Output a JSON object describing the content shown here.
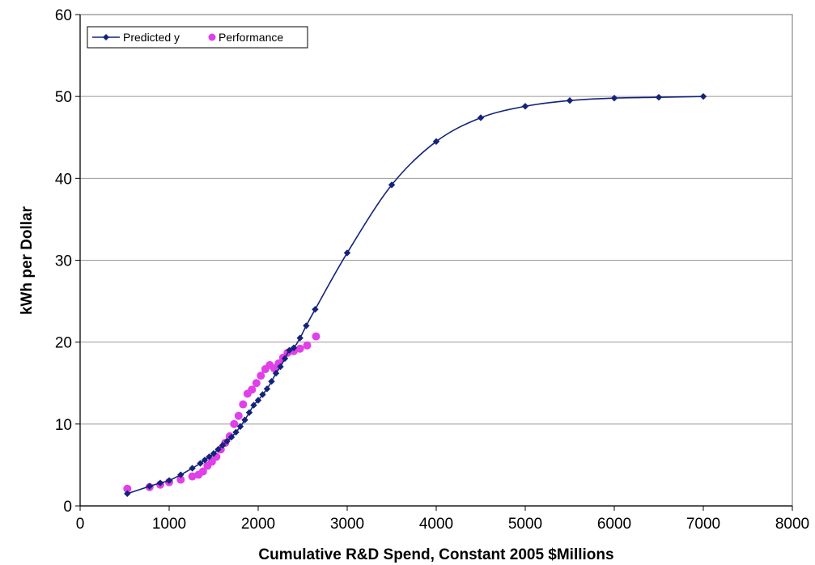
{
  "chart_data": {
    "type": "scatter",
    "xlabel": "Cumulative R&D Spend, Constant 2005 $Millions",
    "ylabel": "kWh per Dollar",
    "xlim": [
      0,
      8000
    ],
    "ylim": [
      0,
      60
    ],
    "xticks": [
      "0",
      "1000",
      "2000",
      "3000",
      "4000",
      "5000",
      "6000",
      "7000",
      "8000"
    ],
    "yticks": [
      "0",
      "10",
      "20",
      "30",
      "40",
      "50",
      "60"
    ],
    "grid": "horizontal",
    "legend_position": "top-left",
    "series": [
      {
        "name": "Predicted y",
        "kind": "line+markers",
        "color": "#14237a",
        "x": [
          530,
          780,
          900,
          1000,
          1130,
          1260,
          1350,
          1400,
          1450,
          1500,
          1550,
          1600,
          1650,
          1700,
          1750,
          1800,
          1850,
          1900,
          1950,
          2000,
          2050,
          2100,
          2150,
          2200,
          2250,
          2300,
          2350,
          2400,
          2470,
          2540,
          2640,
          3000,
          3500,
          4000,
          4500,
          5000,
          5500,
          6000,
          6500,
          7000
        ],
        "y": [
          1.5,
          2.4,
          2.8,
          3.1,
          3.8,
          4.6,
          5.2,
          5.6,
          6.0,
          6.4,
          6.9,
          7.4,
          7.9,
          8.4,
          9.0,
          9.7,
          10.5,
          11.4,
          12.3,
          12.9,
          13.6,
          14.3,
          15.2,
          16.2,
          17.0,
          18.0,
          19.0,
          19.3,
          20.5,
          22.0,
          24.0,
          30.9,
          39.2,
          44.5,
          47.4,
          48.8,
          49.5,
          49.8,
          49.9,
          50.0
        ]
      },
      {
        "name": "Performance",
        "kind": "markers",
        "color": "#e040e8",
        "x": [
          530,
          780,
          900,
          1000,
          1130,
          1260,
          1330,
          1380,
          1430,
          1480,
          1530,
          1580,
          1630,
          1680,
          1730,
          1780,
          1830,
          1880,
          1930,
          1980,
          2030,
          2080,
          2130,
          2180,
          2230,
          2280,
          2330,
          2400,
          2470,
          2550,
          2650
        ],
        "y": [
          2.1,
          2.3,
          2.6,
          2.9,
          3.2,
          3.6,
          3.8,
          4.2,
          4.9,
          5.4,
          6.0,
          6.9,
          7.7,
          8.5,
          10.0,
          11.0,
          12.4,
          13.7,
          14.2,
          15.0,
          15.9,
          16.7,
          17.2,
          16.8,
          17.4,
          18.1,
          18.7,
          18.9,
          19.2,
          19.6,
          20.7
        ]
      }
    ]
  }
}
